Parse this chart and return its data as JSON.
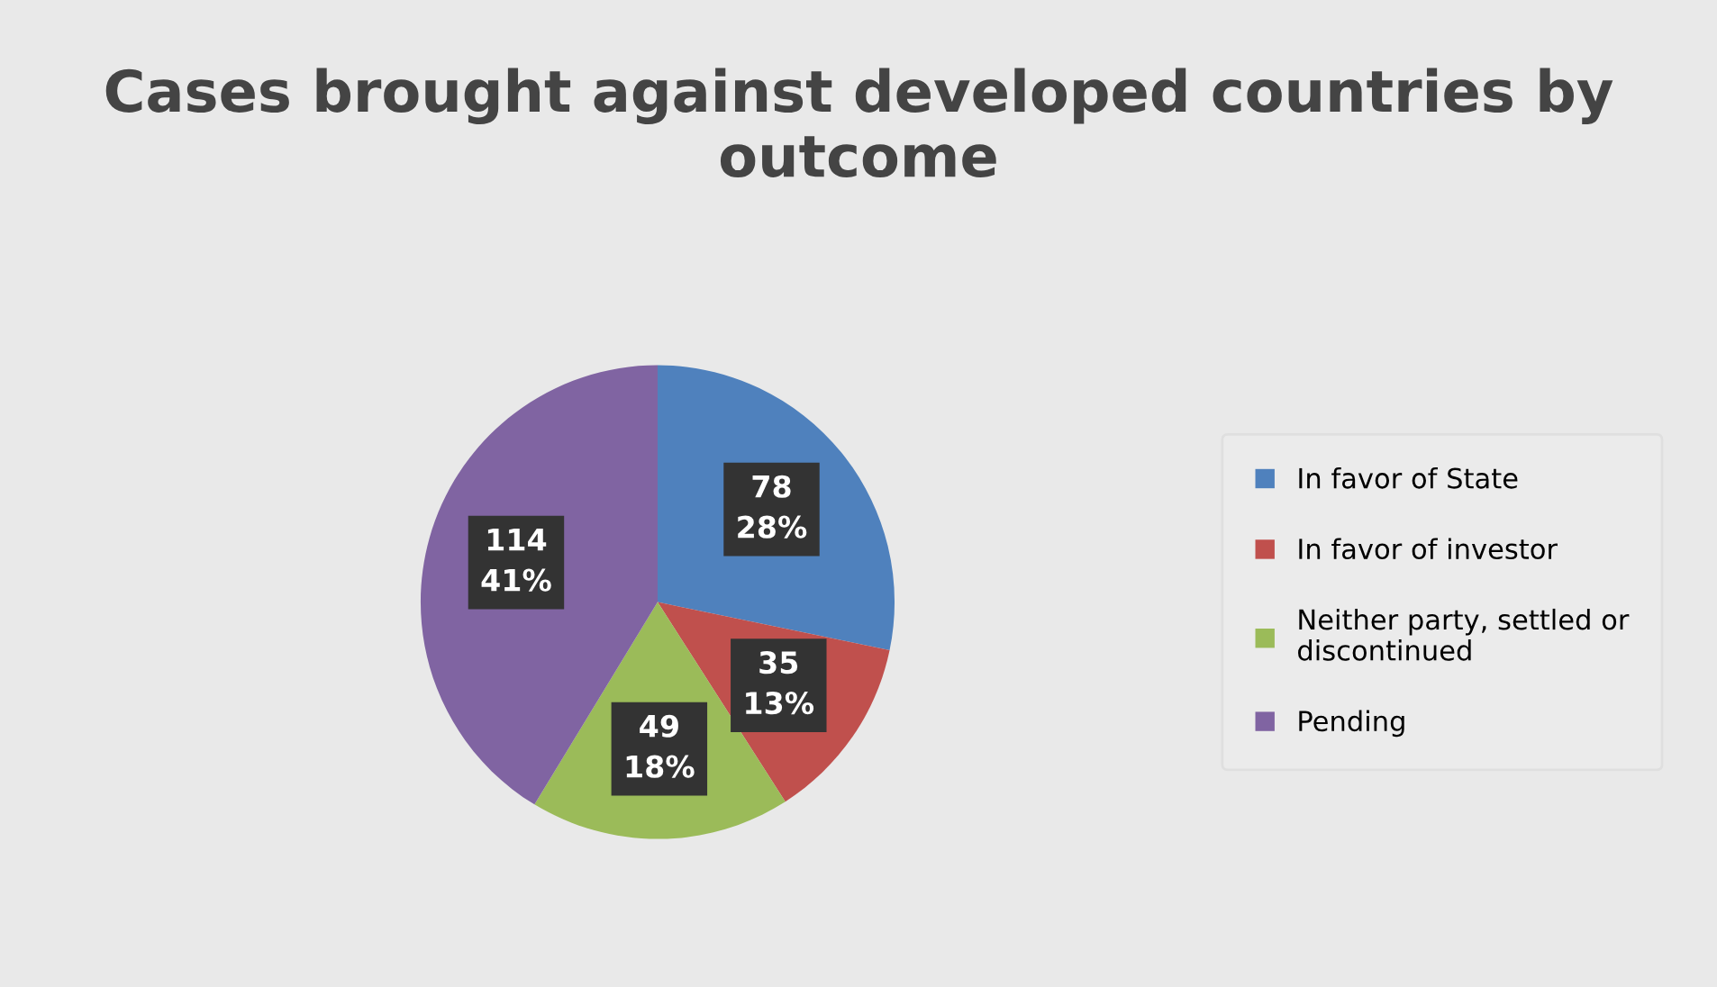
{
  "chart_data": {
    "type": "pie",
    "title": "Cases brought against developed countries by outcome",
    "categories": [
      "In favor of State",
      "In favor of investor",
      "Neither party, settled or discontinued",
      "Pending"
    ],
    "values": [
      78,
      35,
      49,
      114
    ],
    "colors": [
      "#4f81bd",
      "#c0504d",
      "#9bbb59",
      "#8064a2"
    ],
    "value_labels": [
      "78\n28%",
      "35\n13%",
      "49\n18%",
      "114\n41%"
    ],
    "legend": "right"
  }
}
